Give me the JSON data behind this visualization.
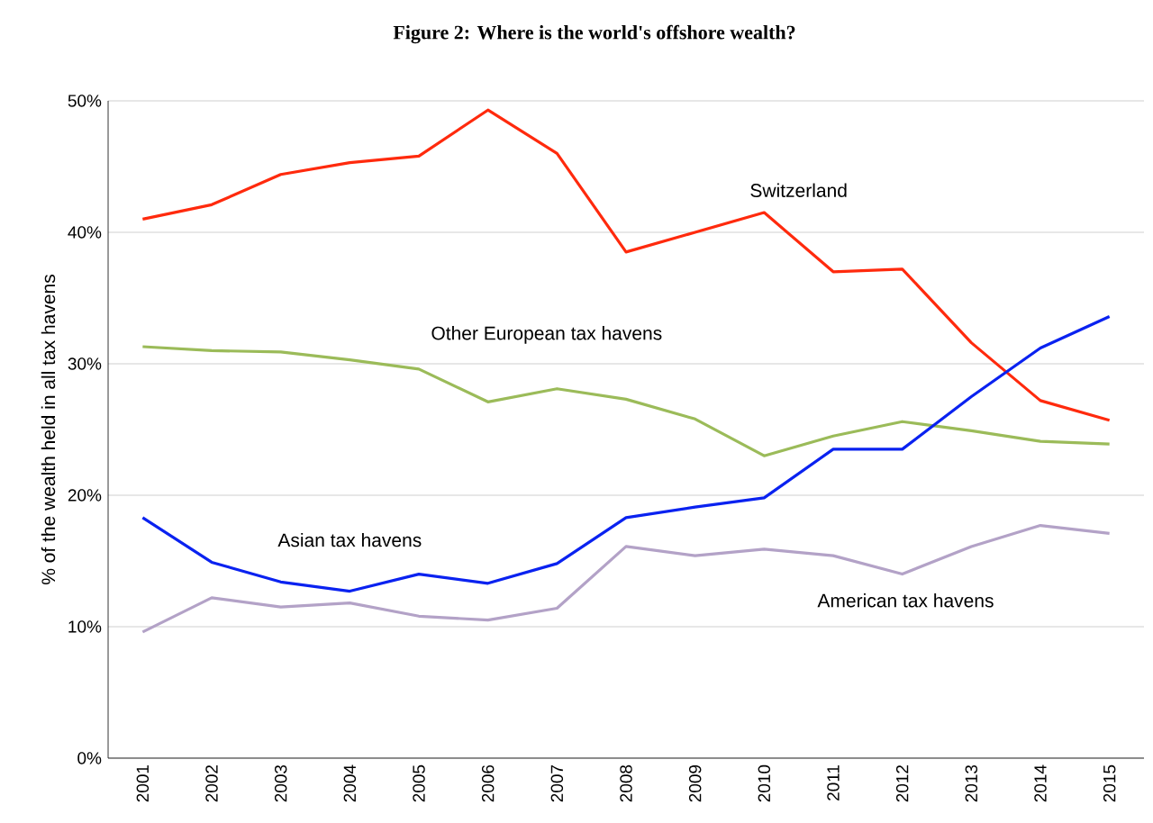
{
  "chart_data": {
    "type": "line",
    "title": "Figure 2: Where is the world's offshore wealth?",
    "ylabel": "% of the wealth held in all tax havens",
    "categories": [
      "2001",
      "2002",
      "2003",
      "2004",
      "2005",
      "2006",
      "2007",
      "2008",
      "2009",
      "2010",
      "2011",
      "2012",
      "2013",
      "2014",
      "2015"
    ],
    "series": [
      {
        "name": "Switzerland",
        "color": "#ff2a0d",
        "values": [
          41.0,
          42.1,
          44.4,
          45.3,
          45.8,
          49.3,
          46.0,
          38.5,
          40.0,
          41.5,
          37.0,
          37.2,
          31.6,
          27.2,
          25.7
        ]
      },
      {
        "name": "Other European tax havens",
        "color": "#9bbb59",
        "values": [
          31.3,
          31.0,
          30.9,
          30.3,
          29.6,
          27.1,
          28.1,
          27.3,
          25.8,
          23.0,
          24.5,
          25.6,
          24.9,
          24.1,
          23.9
        ]
      },
      {
        "name": "Asian tax havens",
        "color": "#0a22f0",
        "values": [
          18.3,
          14.9,
          13.4,
          12.7,
          14.0,
          13.3,
          14.8,
          18.3,
          19.1,
          19.8,
          23.5,
          23.5,
          27.5,
          31.2,
          33.6
        ]
      },
      {
        "name": "American tax havens",
        "color": "#b3a2c7",
        "values": [
          9.6,
          12.2,
          11.5,
          11.8,
          10.8,
          10.5,
          11.4,
          16.1,
          15.4,
          15.9,
          15.4,
          14.0,
          16.1,
          17.7,
          17.1
        ]
      }
    ],
    "ylim": [
      0,
      50
    ],
    "yticks": [
      {
        "value": 0,
        "label": "0%"
      },
      {
        "value": 10,
        "label": "10%"
      },
      {
        "value": 20,
        "label": "20%"
      },
      {
        "value": 30,
        "label": "30%"
      },
      {
        "value": 40,
        "label": "40%"
      },
      {
        "value": 50,
        "label": "50%"
      }
    ],
    "grid": "y",
    "legend": false,
    "marker": "none",
    "line_style": "solid"
  }
}
